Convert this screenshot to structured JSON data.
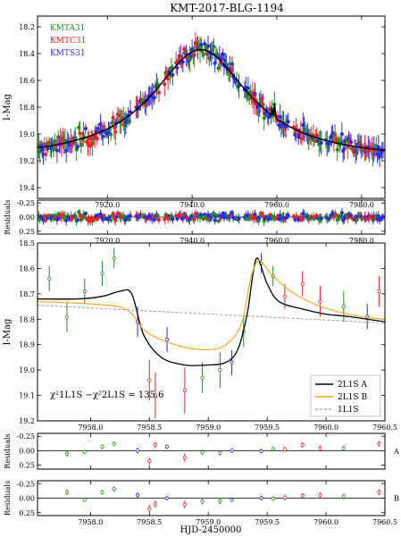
{
  "figure": {
    "title": "KMT-2017-BLG-1194",
    "xlabel": "HJD-2450000",
    "chi2_label": "χ²1L1S −χ²2L1S = 135.6",
    "colors": {
      "KMTA31": "#228b22",
      "KMTC31": "#e8262a",
      "KMTS31": "#2b2bdc",
      "model_A": "#000000",
      "model_B": "#f5a623",
      "model_1L1S": "#888888"
    }
  },
  "chart_data": [
    {
      "id": "top",
      "type": "scatter",
      "ylabel": "I-Mag",
      "xlim": [
        7903.5,
        7985.5
      ],
      "ylim": [
        19.48,
        18.12
      ],
      "xticks": [
        7920.0,
        7940.0,
        7960.0,
        7980.0
      ],
      "yticks": [
        18.2,
        18.4,
        18.6,
        18.8,
        19.0,
        19.2,
        19.4
      ],
      "legend": [
        "KMTA31",
        "KMTC31",
        "KMTS31"
      ],
      "model": {
        "name": "2L1S",
        "t0": 7942.0,
        "peak": 18.37,
        "base": 19.2,
        "width": 14.0,
        "anomaly_t": 7959.4
      }
    },
    {
      "id": "top-residuals",
      "type": "scatter",
      "ylabel": "Residuals",
      "xlim": [
        7903.5,
        7985.5
      ],
      "ylim": [
        0.3,
        -0.3
      ],
      "xticks": [
        7920.0,
        7940.0,
        7960.0,
        7980.0
      ],
      "yticks": [
        -0.25,
        0.0,
        0.25
      ]
    },
    {
      "id": "zoom",
      "type": "line",
      "ylabel": "I-Mag",
      "xlim": [
        7957.55,
        7960.5
      ],
      "ylim": [
        19.2,
        18.5
      ],
      "xticks": [
        7958.0,
        7958.5,
        7959.0,
        7959.5,
        7960.0,
        7960.5
      ],
      "yticks": [
        18.5,
        18.6,
        18.7,
        18.8,
        18.9,
        19.0,
        19.1,
        19.2
      ],
      "legend": [
        "2L1S A",
        "2L1S B",
        "1L1S"
      ],
      "points": [
        {
          "x": 7957.65,
          "y": 18.64,
          "e": 0.05,
          "s": "KMTA31"
        },
        {
          "x": 7957.8,
          "y": 18.79,
          "e": 0.06,
          "s": "KMTA31"
        },
        {
          "x": 7957.95,
          "y": 18.69,
          "e": 0.05,
          "s": "KMTA31"
        },
        {
          "x": 7958.1,
          "y": 18.62,
          "e": 0.05,
          "s": "KMTA31"
        },
        {
          "x": 7958.2,
          "y": 18.56,
          "e": 0.04,
          "s": "KMTA31"
        },
        {
          "x": 7958.4,
          "y": 18.81,
          "e": 0.06,
          "s": "KMTS31"
        },
        {
          "x": 7958.5,
          "y": 19.04,
          "e": 0.08,
          "s": "KMTC31"
        },
        {
          "x": 7958.55,
          "y": 19.1,
          "e": 0.09,
          "s": "KMTC31"
        },
        {
          "x": 7958.65,
          "y": 18.88,
          "e": 0.05,
          "s": "KMTS31"
        },
        {
          "x": 7958.8,
          "y": 19.08,
          "e": 0.09,
          "s": "KMTC31"
        },
        {
          "x": 7958.95,
          "y": 19.03,
          "e": 0.06,
          "s": "KMTA31"
        },
        {
          "x": 7959.1,
          "y": 19.0,
          "e": 0.07,
          "s": "KMTA31"
        },
        {
          "x": 7959.2,
          "y": 18.97,
          "e": 0.05,
          "s": "KMTS31"
        },
        {
          "x": 7959.3,
          "y": 18.85,
          "e": 0.06,
          "s": "KMTA31"
        },
        {
          "x": 7959.45,
          "y": 18.58,
          "e": 0.04,
          "s": "KMTS31"
        },
        {
          "x": 7959.55,
          "y": 18.63,
          "e": 0.04,
          "s": "KMTA31"
        },
        {
          "x": 7959.65,
          "y": 18.71,
          "e": 0.05,
          "s": "KMTC31"
        },
        {
          "x": 7959.8,
          "y": 18.66,
          "e": 0.05,
          "s": "KMTC31"
        },
        {
          "x": 7959.95,
          "y": 18.73,
          "e": 0.06,
          "s": "KMTC31"
        },
        {
          "x": 7960.15,
          "y": 18.75,
          "e": 0.06,
          "s": "KMTA31"
        },
        {
          "x": 7960.35,
          "y": 18.79,
          "e": 0.05,
          "s": "KMTS31"
        },
        {
          "x": 7960.45,
          "y": 18.69,
          "e": 0.06,
          "s": "KMTC31"
        }
      ],
      "models": [
        {
          "name": "2L1S A",
          "x": [
            7957.55,
            7957.9,
            7958.1,
            7958.25,
            7958.35,
            7958.45,
            7958.6,
            7958.8,
            7959.0,
            7959.15,
            7959.25,
            7959.33,
            7959.38,
            7959.42,
            7959.5,
            7959.6,
            7959.8,
            7960.0,
            7960.2,
            7960.5
          ],
          "y": [
            18.72,
            18.72,
            18.71,
            18.69,
            18.7,
            18.86,
            18.95,
            18.98,
            18.98,
            18.97,
            18.92,
            18.78,
            18.62,
            18.56,
            18.66,
            18.73,
            18.76,
            18.78,
            18.79,
            18.81
          ]
        },
        {
          "name": "2L1S B",
          "x": [
            7957.55,
            7958.0,
            7958.3,
            7958.45,
            7958.6,
            7958.8,
            7959.0,
            7959.15,
            7959.28,
            7959.36,
            7959.42,
            7959.48,
            7959.55,
            7959.7,
            7959.9,
            7960.1,
            7960.3,
            7960.5
          ],
          "y": [
            18.73,
            18.74,
            18.76,
            18.84,
            18.88,
            18.91,
            18.92,
            18.9,
            18.82,
            18.64,
            18.57,
            18.59,
            18.63,
            18.69,
            18.74,
            18.77,
            18.79,
            18.8
          ]
        },
        {
          "name": "1L1S",
          "x": [
            7957.55,
            7960.5
          ],
          "y": [
            18.745,
            18.815
          ]
        }
      ]
    },
    {
      "id": "res-A",
      "type": "scatter",
      "ylabel": "Residuals",
      "side_label": "A",
      "xlim": [
        7957.55,
        7960.5
      ],
      "ylim": [
        0.32,
        -0.3
      ],
      "yticks": [
        -0.25,
        0.0,
        0.25
      ],
      "points": [
        {
          "x": 7957.8,
          "y": 0.05,
          "e": 0.05,
          "s": "KMTA31"
        },
        {
          "x": 7957.95,
          "y": 0.02,
          "e": 0.04,
          "s": "KMTA31"
        },
        {
          "x": 7958.1,
          "y": -0.07,
          "e": 0.04,
          "s": "KMTA31"
        },
        {
          "x": 7958.2,
          "y": -0.12,
          "e": 0.04,
          "s": "KMTA31"
        },
        {
          "x": 7958.4,
          "y": 0.0,
          "e": 0.05,
          "s": "KMTS31"
        },
        {
          "x": 7958.5,
          "y": 0.18,
          "e": 0.07,
          "s": "KMTC31"
        },
        {
          "x": 7958.55,
          "y": -0.1,
          "e": 0.06,
          "s": "KMTC31"
        },
        {
          "x": 7958.65,
          "y": -0.07,
          "e": 0.04,
          "s": "KMTS31"
        },
        {
          "x": 7958.8,
          "y": 0.12,
          "e": 0.07,
          "s": "KMTC31"
        },
        {
          "x": 7958.95,
          "y": 0.03,
          "e": 0.05,
          "s": "KMTA31"
        },
        {
          "x": 7959.1,
          "y": 0.04,
          "e": 0.05,
          "s": "KMTA31"
        },
        {
          "x": 7959.2,
          "y": 0.0,
          "e": 0.04,
          "s": "KMTS31"
        },
        {
          "x": 7959.45,
          "y": 0.01,
          "e": 0.04,
          "s": "KMTS31"
        },
        {
          "x": 7959.55,
          "y": -0.03,
          "e": 0.04,
          "s": "KMTA31"
        },
        {
          "x": 7959.65,
          "y": -0.02,
          "e": 0.05,
          "s": "KMTC31"
        },
        {
          "x": 7959.8,
          "y": -0.1,
          "e": 0.05,
          "s": "KMTC31"
        },
        {
          "x": 7959.95,
          "y": -0.04,
          "e": 0.05,
          "s": "KMTC31"
        },
        {
          "x": 7960.15,
          "y": -0.04,
          "e": 0.05,
          "s": "KMTA31"
        },
        {
          "x": 7960.45,
          "y": -0.12,
          "e": 0.05,
          "s": "KMTC31"
        }
      ]
    },
    {
      "id": "res-B",
      "type": "scatter",
      "ylabel": "Residuals",
      "side_label": "B",
      "xlim": [
        7957.55,
        7960.5
      ],
      "ylim": [
        0.3,
        -0.3
      ],
      "xticks": [
        7958.0,
        7958.5,
        7959.0,
        7959.5,
        7960.0,
        7960.5
      ],
      "yticks": [
        -0.25,
        0.0,
        0.25
      ],
      "points": [
        {
          "x": 7957.8,
          "y": -0.1,
          "e": 0.05,
          "s": "KMTA31"
        },
        {
          "x": 7957.95,
          "y": 0.03,
          "e": 0.04,
          "s": "KMTA31"
        },
        {
          "x": 7958.1,
          "y": -0.1,
          "e": 0.04,
          "s": "KMTA31"
        },
        {
          "x": 7958.2,
          "y": -0.16,
          "e": 0.04,
          "s": "KMTA31"
        },
        {
          "x": 7958.4,
          "y": -0.05,
          "e": 0.05,
          "s": "KMTS31"
        },
        {
          "x": 7958.5,
          "y": 0.18,
          "e": 0.07,
          "s": "KMTC31"
        },
        {
          "x": 7958.55,
          "y": 0.1,
          "e": 0.06,
          "s": "KMTC31"
        },
        {
          "x": 7958.65,
          "y": 0.0,
          "e": 0.04,
          "s": "KMTS31"
        },
        {
          "x": 7958.8,
          "y": 0.11,
          "e": 0.07,
          "s": "KMTC31"
        },
        {
          "x": 7958.95,
          "y": 0.06,
          "e": 0.05,
          "s": "KMTA31"
        },
        {
          "x": 7959.1,
          "y": 0.05,
          "e": 0.05,
          "s": "KMTA31"
        },
        {
          "x": 7959.2,
          "y": 0.03,
          "e": 0.04,
          "s": "KMTS31"
        },
        {
          "x": 7959.45,
          "y": 0.0,
          "e": 0.04,
          "s": "KMTS31"
        },
        {
          "x": 7959.55,
          "y": 0.01,
          "e": 0.04,
          "s": "KMTA31"
        },
        {
          "x": 7959.65,
          "y": -0.01,
          "e": 0.05,
          "s": "KMTC31"
        },
        {
          "x": 7959.8,
          "y": -0.04,
          "e": 0.05,
          "s": "KMTC31"
        },
        {
          "x": 7959.95,
          "y": -0.05,
          "e": 0.05,
          "s": "KMTC31"
        },
        {
          "x": 7960.15,
          "y": -0.03,
          "e": 0.05,
          "s": "KMTA31"
        },
        {
          "x": 7960.45,
          "y": -0.1,
          "e": 0.05,
          "s": "KMTC31"
        }
      ]
    }
  ]
}
